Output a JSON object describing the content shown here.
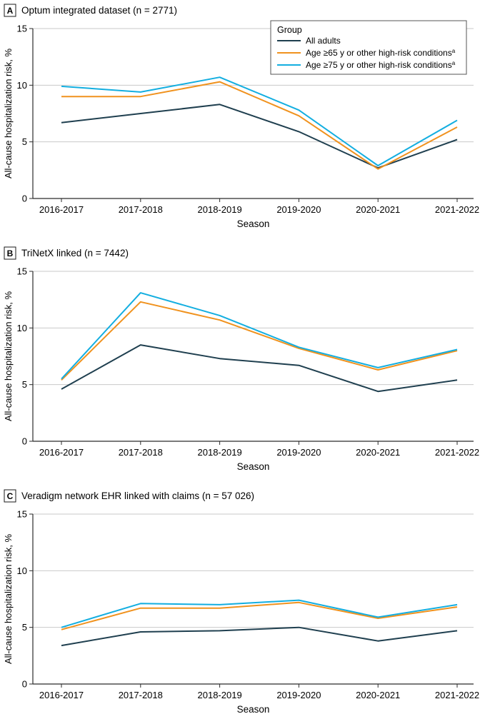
{
  "colors": {
    "all_adults": "#1f3f4f",
    "age65": "#f0921e",
    "age75": "#13aee0",
    "axis": "#2b2b2b",
    "grid": "#c9c9c9"
  },
  "legend": {
    "title": "Group",
    "items": [
      {
        "key": "all_adults",
        "label": "All adults",
        "sup": ""
      },
      {
        "key": "age65",
        "label": "Age ≥65 y or other high-risk conditions",
        "sup": "a"
      },
      {
        "key": "age75",
        "label": "Age ≥75 y or other high-risk conditions",
        "sup": "a"
      }
    ]
  },
  "chart_data": [
    {
      "type": "line",
      "panel_letter": "A",
      "title": "Optum integrated dataset (n = 2771)",
      "xlabel": "Season",
      "ylabel": "All-cause hospitalization risk, %",
      "categories": [
        "2016-2017",
        "2017-2018",
        "2018-2019",
        "2019-2020",
        "2020-2021",
        "2021-2022"
      ],
      "ylim": [
        0,
        15
      ],
      "yticks": [
        0,
        5,
        10,
        15
      ],
      "grid": true,
      "legend_position": "top-right",
      "series": [
        {
          "key": "all_adults",
          "name": "All adults",
          "values": [
            6.7,
            7.5,
            8.3,
            5.9,
            2.7,
            5.2
          ]
        },
        {
          "key": "age65",
          "name": "Age ≥65 y or other high-risk conditions",
          "values": [
            9.0,
            9.0,
            10.3,
            7.3,
            2.6,
            6.3
          ]
        },
        {
          "key": "age75",
          "name": "Age ≥75 y or other high-risk conditions",
          "values": [
            9.9,
            9.4,
            10.7,
            7.8,
            2.9,
            6.9
          ]
        }
      ]
    },
    {
      "type": "line",
      "panel_letter": "B",
      "title": "TriNetX linked (n = 7442)",
      "xlabel": "Season",
      "ylabel": "All-cause hospitalization risk, %",
      "categories": [
        "2016-2017",
        "2017-2018",
        "2018-2019",
        "2019-2020",
        "2020-2021",
        "2021-2022"
      ],
      "ylim": [
        0,
        15
      ],
      "yticks": [
        0,
        5,
        10,
        15
      ],
      "grid": true,
      "series": [
        {
          "key": "all_adults",
          "name": "All adults",
          "values": [
            4.6,
            8.5,
            7.3,
            6.7,
            4.4,
            5.4
          ]
        },
        {
          "key": "age65",
          "name": "Age ≥65 y or other high-risk conditions",
          "values": [
            5.4,
            12.3,
            10.7,
            8.2,
            6.3,
            8.0
          ]
        },
        {
          "key": "age75",
          "name": "Age ≥75 y or other high-risk conditions",
          "values": [
            5.5,
            13.1,
            11.1,
            8.3,
            6.5,
            8.1
          ]
        }
      ]
    },
    {
      "type": "line",
      "panel_letter": "C",
      "title": "Veradigm network EHR linked with claims (n = 57 026)",
      "xlabel": "Season",
      "ylabel": "All-cause hospitalization risk, %",
      "categories": [
        "2016-2017",
        "2017-2018",
        "2018-2019",
        "2019-2020",
        "2020-2021",
        "2021-2022"
      ],
      "ylim": [
        0,
        15
      ],
      "yticks": [
        0,
        5,
        10,
        15
      ],
      "grid": true,
      "series": [
        {
          "key": "all_adults",
          "name": "All adults",
          "values": [
            3.4,
            4.6,
            4.7,
            5.0,
            3.8,
            4.7
          ]
        },
        {
          "key": "age65",
          "name": "Age ≥65 y or other high-risk conditions",
          "values": [
            4.8,
            6.7,
            6.7,
            7.2,
            5.8,
            6.8
          ]
        },
        {
          "key": "age75",
          "name": "Age ≥75 y or other high-risk conditions",
          "values": [
            5.0,
            7.1,
            7.0,
            7.4,
            5.9,
            7.0
          ]
        }
      ]
    }
  ]
}
